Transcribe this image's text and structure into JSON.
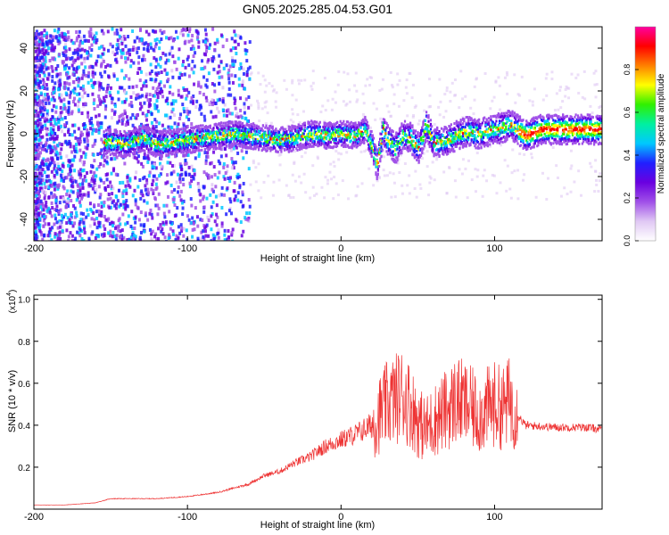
{
  "title": "GN05.2025.285.04.53.G01",
  "chart_data": [
    {
      "type": "heatmap",
      "xlabel": "Height of straight line (km)",
      "ylabel": "Frequency (Hz)",
      "xlim": [
        -200,
        170
      ],
      "ylim": [
        -50,
        50
      ],
      "xticks": [
        -200,
        -100,
        0,
        100
      ],
      "yticks": [
        -40,
        -20,
        0,
        20,
        40
      ],
      "colorbar": {
        "label": "Normalized spectral amplitude",
        "ticks": [
          "0.0",
          "0.2",
          "0.4",
          "0.6",
          "0.8"
        ],
        "colors": [
          "#ffffff",
          "#e0c8f4",
          "#a050e8",
          "#6a00e0",
          "#2020ff",
          "#00c8ff",
          "#00f0a0",
          "#30f000",
          "#ffff00",
          "#ff8000",
          "#ff0000",
          "#ff00a0"
        ]
      },
      "ridge": {
        "x": [
          -150,
          -140,
          -130,
          -120,
          -110,
          -100,
          -90,
          -80,
          -70,
          -60,
          -50,
          -40,
          -30,
          -20,
          -10,
          0,
          10,
          15,
          20,
          23,
          27,
          30,
          35,
          40,
          45,
          50,
          55,
          60,
          65,
          70,
          80,
          90,
          100,
          110,
          120,
          130,
          140,
          150,
          160,
          170
        ],
        "y": [
          -4,
          -5,
          -2,
          -5,
          -4,
          -3,
          -2,
          -1,
          0,
          -1,
          -2,
          -3,
          -2,
          0,
          -1,
          0,
          -1,
          2,
          -6,
          -15,
          2,
          -3,
          -7,
          -1,
          -2,
          -7,
          4,
          -4,
          -4,
          -3,
          1,
          0,
          2,
          4,
          -1,
          2,
          2,
          2,
          2,
          2
        ]
      }
    },
    {
      "type": "line",
      "xlabel": "Height of straight line (km)",
      "ylabel": "SNR (10 * v/v)",
      "yscale_label": "(x10",
      "yscale_exponent": "4",
      "xlim": [
        -200,
        170
      ],
      "ylim": [
        0,
        1.02
      ],
      "xticks": [
        -200,
        -100,
        0,
        100
      ],
      "yticks": [
        "0.2",
        "0.4",
        "0.6",
        "0.8",
        "1.0"
      ],
      "color": "#ee3333",
      "series": [
        {
          "name": "SNR",
          "x": [
            -200,
            -180,
            -160,
            -150,
            -140,
            -120,
            -100,
            -80,
            -60,
            -50,
            -40,
            -30,
            -20,
            -10,
            0,
            10,
            20,
            25,
            30,
            40,
            45,
            50,
            55,
            60,
            70,
            75,
            80,
            85,
            90,
            95,
            100,
            105,
            110,
            115,
            120,
            140,
            160,
            170
          ],
          "y": [
            0.02,
            0.02,
            0.03,
            0.05,
            0.05,
            0.05,
            0.06,
            0.08,
            0.12,
            0.16,
            0.18,
            0.22,
            0.25,
            0.3,
            0.33,
            0.36,
            0.4,
            0.45,
            0.5,
            0.55,
            0.5,
            0.42,
            0.38,
            0.42,
            0.48,
            0.52,
            0.5,
            0.48,
            0.45,
            0.48,
            0.5,
            0.48,
            0.52,
            0.45,
            0.4,
            0.39,
            0.39,
            0.38
          ]
        }
      ]
    }
  ]
}
